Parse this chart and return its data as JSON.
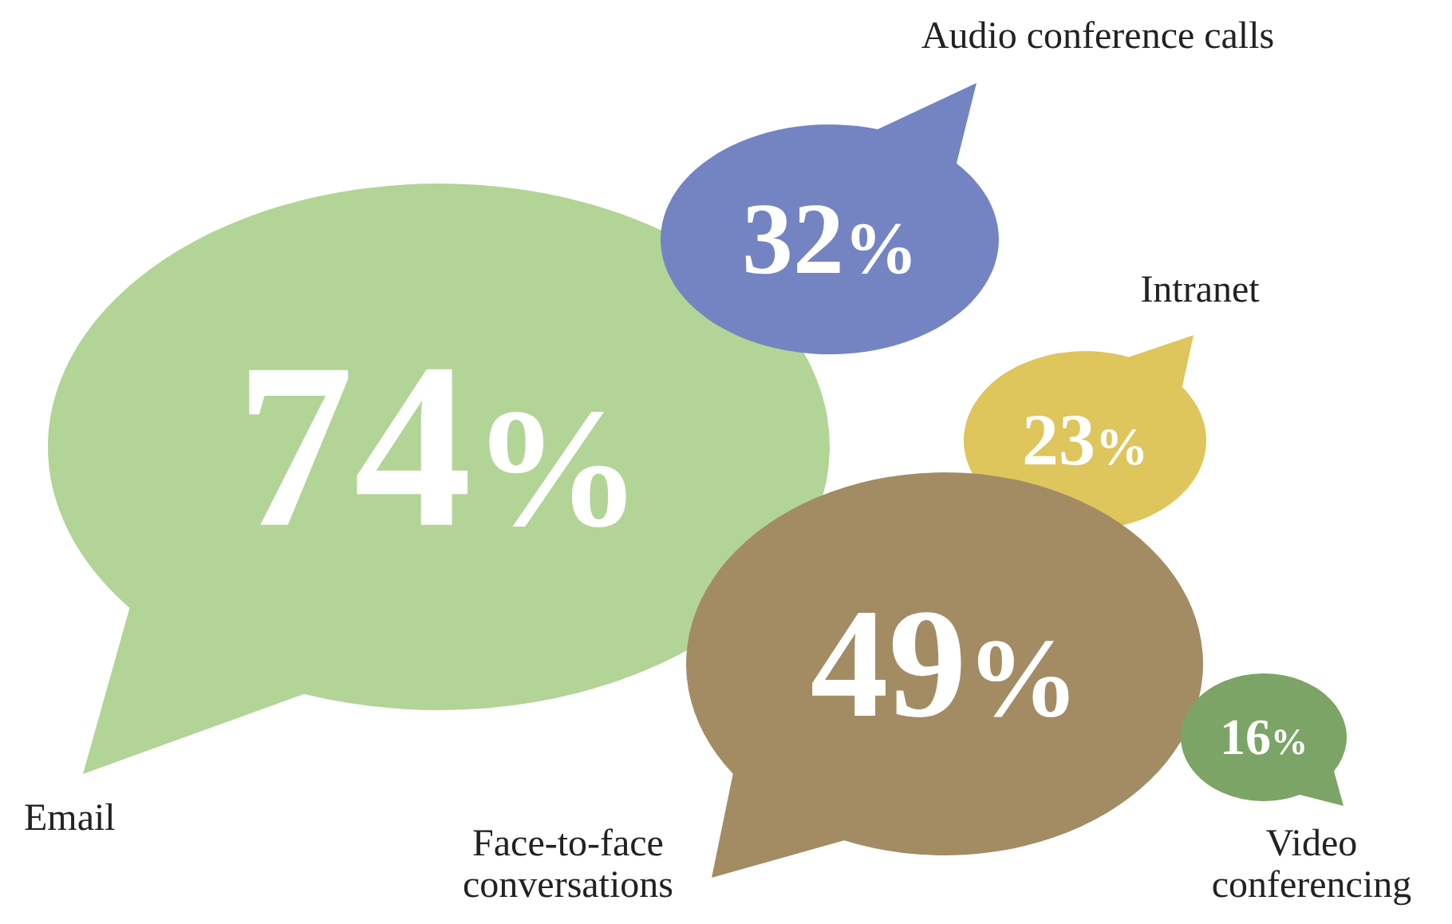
{
  "chart_data": {
    "type": "other",
    "categories": [
      "Email",
      "Audio conference calls",
      "Intranet",
      "Face-to-face conversations",
      "Video conferencing"
    ],
    "values": [
      74,
      32,
      23,
      49,
      16
    ],
    "value_labels": [
      "74%",
      "32%",
      "23%",
      "49%",
      "16%"
    ],
    "colors": [
      "#b2d496",
      "#7484c2",
      "#dec55c",
      "#a38b64",
      "#7ba466"
    ]
  }
}
